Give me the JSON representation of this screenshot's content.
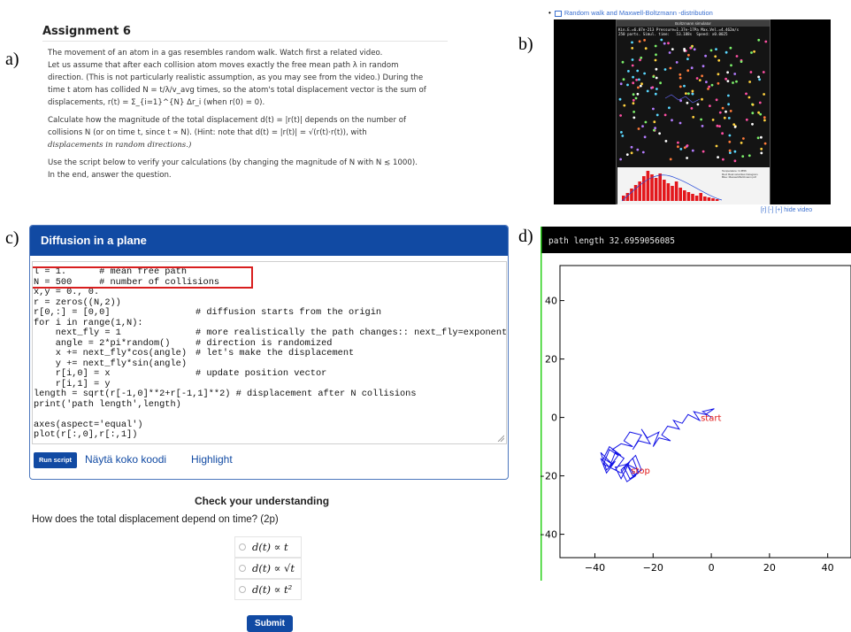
{
  "panels": {
    "a": "a)",
    "b": "b)",
    "c": "c)",
    "d": "d)"
  },
  "assignment": {
    "title": "Assignment 6",
    "p1_l1": "The movement of an atom in a gas resembles random walk. Watch first a related video.",
    "p1_l2": "Let us assume that after each collision atom moves exactly the free mean path λ in random",
    "p1_l3": "direction. (This is not particularly realistic assumption, as you may see from the video.) During the",
    "p1_l4": "time t atom has collided N = t/λ/v_avg times, so the atom's total displacement vector is the sum of",
    "p1_l5": "displacements, r(t) = Σ_{i=1}^{N} Δr_i (when r(0) = 0).",
    "p2_l1": "Calculate how the magnitude of the total displacement d(t) = |r(t)| depends on the number of",
    "p2_l2": "collisions N (or on time t, since t ∝ N). (Hint: note that d(t) = |r(t)| = √(r(t)·r(t)), with",
    "p2_l3": "displacements in random directions.)",
    "p3_l1": "Use the script below to verify your calculations (by changing the magnitude of N with N ≲ 1000).",
    "p3_l2": "In the end, answer the question."
  },
  "video": {
    "link": "Random walk and Maxwell-Boltzmann -distribution",
    "window_title": "Boltzmann simulator",
    "stats_l1": "Kin.E.=6.07e-213 Pressure=1.37e-17Pa Max.Vel.=4.462m/s",
    "stats_l2": "250 parts. Simul. time:   53.188s  Speed: x0.0025",
    "hist_legend_l1": "Temperature: 3.4556",
    "hist_legend_l2": "Red: Real velocities histogram",
    "hist_legend_l3": "Blue: Maxwell-Boltzmann pdf",
    "controls": "[r] [-] [+] hide video"
  },
  "editor": {
    "title": "Diffusion in a plane",
    "lines": [
      "l = 1.      # mean free path",
      "N = 500     # number of collisions",
      "x,y = 0., 0.",
      "r = zeros((N,2))",
      "r[0,:] = [0,0]",
      "for i in range(1,N):",
      "    next_fly = 1",
      "    angle = 2*pi*random()",
      "    x += next_fly*cos(angle)",
      "    y += next_fly*sin(angle)",
      "    r[i,0] = x",
      "    r[i,1] = y",
      "length = sqrt(r[-1,0]**2+r[-1,1]**2) # displacement after N collisions",
      "print('path length',length)",
      "",
      "axes(aspect='equal')",
      "plot(r[:,0],r[:,1])"
    ],
    "comments": {
      "l4": "# diffusion starts from the origin",
      "l6": "# more realistically the path changes:: next_fly=exponent",
      "l7": "# direction is randomized",
      "l8": "# let's make the displacement",
      "l10": "# update position vector"
    },
    "run_label": "Run script",
    "full_code_label": "Näytä koko koodi",
    "highlight_label": "Highlight"
  },
  "question": {
    "title": "Check your understanding",
    "text": "How does the total displacement depend on time? (2p)",
    "options": [
      "d(t) ∝ t",
      "d(t) ∝ √t",
      "d(t) ∝ t²"
    ],
    "submit_label": "Submit"
  },
  "plot": {
    "header": "path length 32.6959056085",
    "accent_line": "#2ad11a",
    "series_color": "#1414e6",
    "label_color": "#e11a1a"
  },
  "chart_data": {
    "type": "line",
    "title": "",
    "xlabel": "",
    "ylabel": "",
    "xlim": [
      -52,
      48
    ],
    "ylim": [
      -48,
      52
    ],
    "xticks": [
      -40,
      -20,
      0,
      20,
      40
    ],
    "yticks": [
      40,
      20,
      0,
      -20,
      -40
    ],
    "grid": false,
    "annotations": [
      {
        "text": "start",
        "x": 0,
        "y": 0
      },
      {
        "text": "stop",
        "x": -27,
        "y": -18
      }
    ],
    "series": [
      {
        "x": [
          0,
          -3,
          1,
          -2,
          -6,
          -4,
          -8,
          -10,
          -13,
          -11,
          -15,
          -17,
          -14,
          -18,
          -20,
          -18,
          -22,
          -24,
          -21,
          -25,
          -27,
          -24,
          -28,
          -30,
          -27,
          -31,
          -34,
          -31,
          -35,
          -37,
          -34,
          -38,
          -36,
          -33,
          -36,
          -38,
          -35,
          -32,
          -35,
          -37,
          -33,
          -30,
          -33,
          -35,
          -31,
          -28,
          -31,
          -33,
          -29,
          -26,
          -29,
          -31,
          -27,
          -25,
          -28,
          -30,
          -26,
          -24,
          -27,
          -29,
          -25
        ],
        "y": [
          0,
          2,
          3,
          1,
          2,
          -1,
          1,
          -2,
          -1,
          -4,
          -3,
          -6,
          -8,
          -7,
          -10,
          -5,
          -7,
          -4,
          -9,
          -8,
          -11,
          -6,
          -5,
          -8,
          -10,
          -9,
          -11,
          -13,
          -10,
          -14,
          -16,
          -12,
          -18,
          -15,
          -19,
          -14,
          -17,
          -13,
          -11,
          -16,
          -18,
          -14,
          -12,
          -17,
          -19,
          -15,
          -21,
          -17,
          -16,
          -20,
          -22,
          -18,
          -14,
          -19,
          -21,
          -17,
          -13,
          -18,
          -20,
          -16,
          -18
        ]
      }
    ]
  }
}
